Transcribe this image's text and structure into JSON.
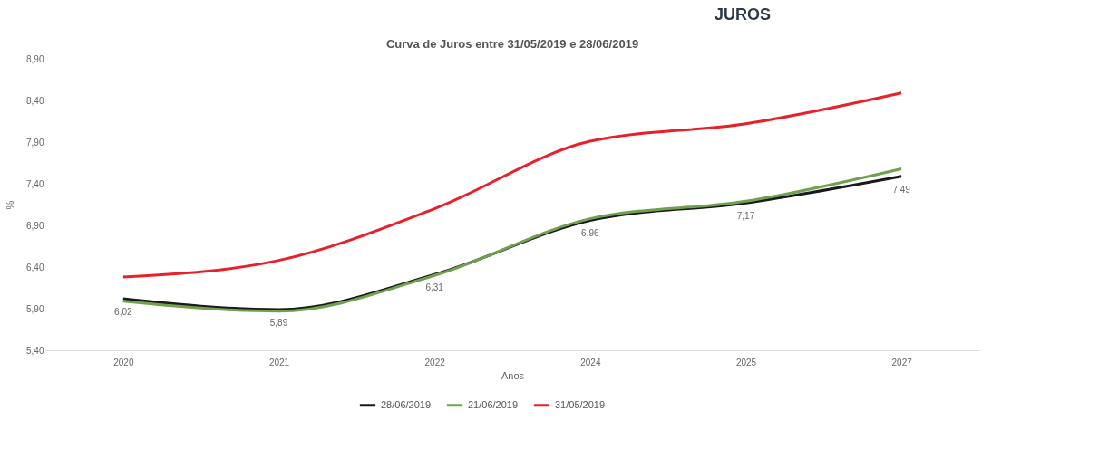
{
  "chart_data": {
    "type": "line",
    "title": "Curva de Juros entre 31/05/2019 e 28/06/2019",
    "xlabel": "Anos",
    "ylabel": "%",
    "annotations": [
      "JUROS"
    ],
    "categories": [
      "2020",
      "2021",
      "2022",
      "2024",
      "2025",
      "2027"
    ],
    "series": [
      {
        "name": "28/06/2019",
        "color": "#1a1a1a",
        "values": [
          6.02,
          5.89,
          6.31,
          6.96,
          7.17,
          7.49
        ],
        "value_labels": [
          "6,02",
          "5,89",
          "6,31",
          "6,96",
          "7,17",
          "7,49"
        ]
      },
      {
        "name": "21/06/2019",
        "color": "#70a050",
        "values": [
          5.99,
          5.87,
          6.3,
          6.98,
          7.19,
          7.58
        ]
      },
      {
        "name": "31/05/2019",
        "color": "#e8202a",
        "values": [
          6.28,
          6.48,
          7.1,
          7.91,
          8.12,
          8.49
        ]
      }
    ],
    "ylim": [
      5.4,
      8.9
    ],
    "yticks": [
      {
        "value": 5.4,
        "label": "5,40"
      },
      {
        "value": 5.9,
        "label": "5,90"
      },
      {
        "value": 6.4,
        "label": "6,40"
      },
      {
        "value": 6.9,
        "label": "6,90"
      },
      {
        "value": 7.4,
        "label": "7,40"
      },
      {
        "value": 7.9,
        "label": "7,90"
      },
      {
        "value": 8.4,
        "label": "8,40"
      },
      {
        "value": 8.9,
        "label": "8,90"
      }
    ],
    "grid": false,
    "legend": "bottom",
    "marker": "none",
    "line_style": "solid"
  }
}
